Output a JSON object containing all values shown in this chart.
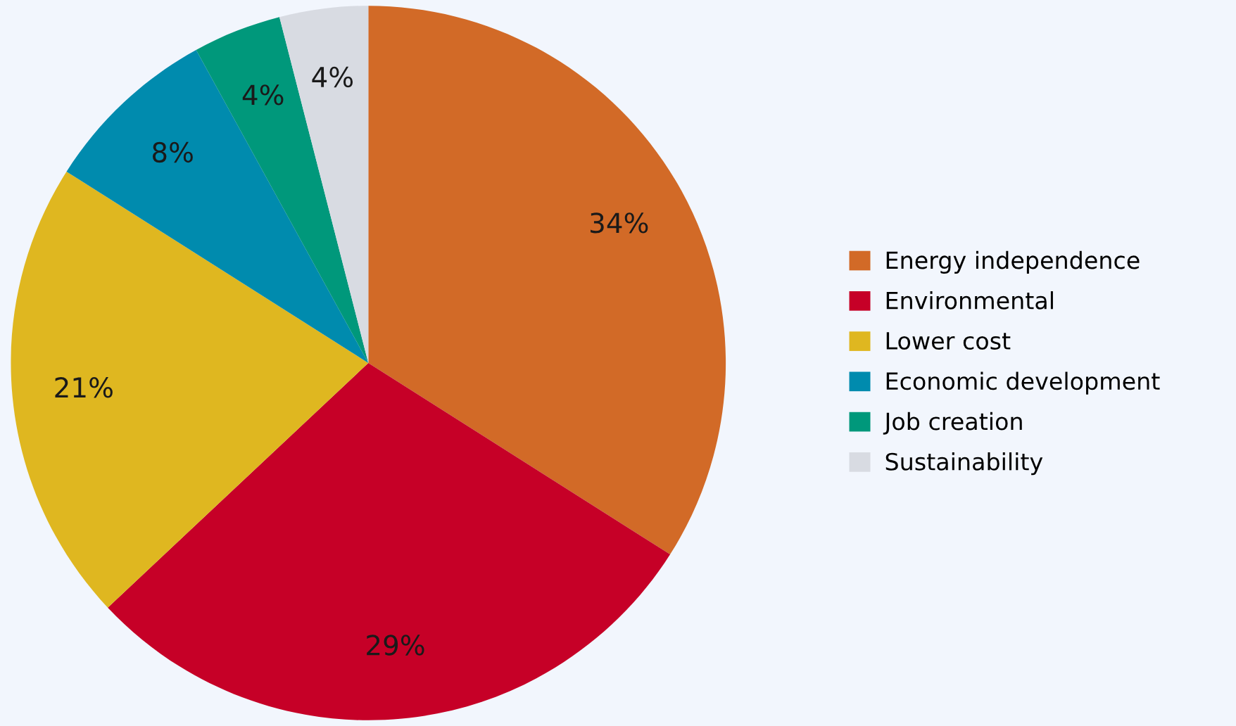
{
  "chart_data": {
    "type": "pie",
    "categories": [
      "Energy independence",
      "Environmental",
      "Lower cost",
      "Economic development",
      "Job creation",
      "Sustainability"
    ],
    "values": [
      34,
      29,
      21,
      8,
      4,
      4
    ],
    "value_labels": [
      "34%",
      "29%",
      "21%",
      "8%",
      "4%",
      "4%"
    ],
    "colors": [
      "#d26a27",
      "#c60027",
      "#dfb720",
      "#008bae",
      "#00987b",
      "#d8dbe2"
    ],
    "legend": "right"
  }
}
